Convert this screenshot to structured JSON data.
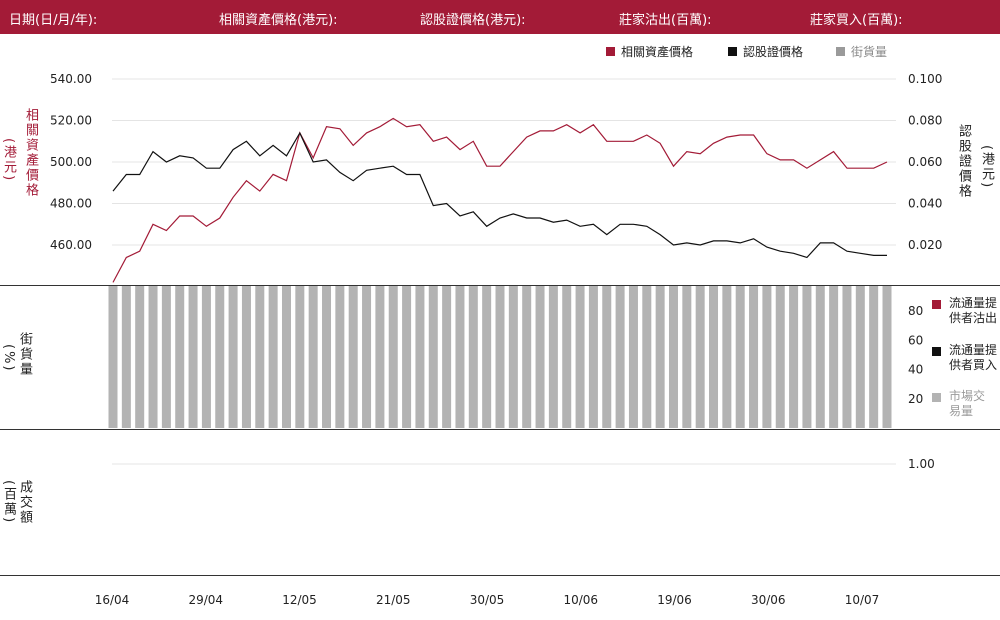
{
  "header": {
    "date_label": "日期(日/月/年):",
    "underlying_label": "相關資產價格(港元):",
    "warrant_label": "認股證價格(港元):",
    "sold_label": "莊家沽出(百萬):",
    "bought_label": "莊家買入(百萬):"
  },
  "legend": {
    "underlying": "相關資產價格",
    "warrant": "認股證價格",
    "outstanding": "街貨量"
  },
  "axis_titles": {
    "left_main": "相關資產價格",
    "left_main_unit": "(港元)",
    "right_main": "認股證價格",
    "right_main_unit": "(港元)",
    "volume_title": "街貨量",
    "volume_unit": "(%)",
    "turnover_title": "成交額",
    "turnover_unit": "(百萬)"
  },
  "volume_legend": {
    "lp_sold": "流通量提供者沽出",
    "lp_bought": "流通量提供者買入",
    "market": "市場交易量"
  },
  "colors": {
    "brand": "#a31b37",
    "underlying": "#a31b37",
    "warrant": "#111111",
    "outstanding": "#b3b3b3",
    "grid": "#e4e4e4"
  },
  "chart_data": [
    {
      "type": "line",
      "x_ticks": [
        "16/04",
        "29/04",
        "12/05",
        "21/05",
        "30/05",
        "10/06",
        "19/06",
        "30/06",
        "10/07"
      ],
      "y_left_ticks": [
        "540.00",
        "520.00",
        "500.00",
        "480.00",
        "460.00"
      ],
      "y_right_ticks": [
        "0.100",
        "0.080",
        "0.060",
        "0.040",
        "0.020"
      ],
      "ylim_left": [
        440,
        540
      ],
      "ylim_right": [
        0,
        0.1
      ],
      "grid": true,
      "legend_position": "top-right",
      "series": [
        {
          "name": "相關資產價格",
          "axis": "left",
          "values": [
            442,
            454,
            457,
            470,
            467,
            474,
            474,
            469,
            473,
            483,
            491,
            486,
            494,
            491,
            514,
            502,
            517,
            516,
            508,
            514,
            517,
            521,
            517,
            518,
            510,
            512,
            506,
            510,
            498,
            498,
            505,
            512,
            515,
            515,
            518,
            514,
            518,
            510,
            510,
            510,
            513,
            509,
            498,
            505,
            504,
            509,
            512,
            513,
            513,
            504,
            501,
            501,
            497,
            501,
            505,
            497,
            497,
            497,
            500
          ]
        },
        {
          "name": "認股證價格",
          "axis": "right",
          "values": [
            0.046,
            0.054,
            0.054,
            0.065,
            0.06,
            0.063,
            0.062,
            0.057,
            0.057,
            0.066,
            0.07,
            0.063,
            0.068,
            0.063,
            0.074,
            0.06,
            0.061,
            0.055,
            0.051,
            0.056,
            0.057,
            0.058,
            0.054,
            0.054,
            0.039,
            0.04,
            0.034,
            0.036,
            0.029,
            0.033,
            0.035,
            0.033,
            0.033,
            0.031,
            0.032,
            0.029,
            0.03,
            0.025,
            0.03,
            0.03,
            0.029,
            0.025,
            0.02,
            0.021,
            0.02,
            0.022,
            0.022,
            0.021,
            0.023,
            0.019,
            0.017,
            0.016,
            0.014,
            0.021,
            0.021,
            0.017,
            0.016,
            0.015,
            0.015
          ]
        }
      ]
    },
    {
      "type": "bar",
      "name": "街貨量",
      "y_ticks": [
        "80",
        "60",
        "40",
        "20"
      ],
      "ylim": [
        0,
        100
      ],
      "bar_count": 59,
      "values_percent": "100"
    },
    {
      "type": "bar",
      "name": "成交額",
      "y_ticks": [
        "1.00"
      ],
      "ylim": [
        0,
        1.5
      ],
      "values": []
    }
  ]
}
